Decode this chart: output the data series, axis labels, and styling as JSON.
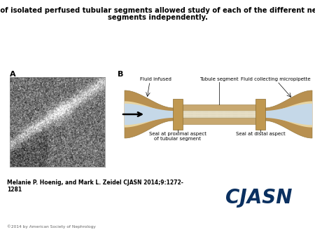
{
  "title_line1": "Study of isolated perfused tubular segments allowed study of each of the different nephron",
  "title_line2": "segments independently.",
  "title_fontsize": 7.2,
  "title_fontweight": "bold",
  "label_A": "A",
  "label_B": "B",
  "label_fontsize": 8,
  "label_fontweight": "bold",
  "text_fluid_infused": "Fluid infused",
  "text_tubule_segment": "Tubule segment",
  "text_fluid_collecting": "Fluid collecting micropipette",
  "text_seal_proximal": "Seal at proximal aspect\nof tubular segment",
  "text_seal_distal": "Seal at distal aspect",
  "text_citation": "Melanie P. Hoenig, and Mark L. Zeidel CJASN 2014;9:1272-\n1281",
  "text_copyright": "©2014 by American Society of Nephrology",
  "text_journal": "CJASN",
  "bg_color": "#ffffff",
  "tan_color": "#c8a870",
  "tan_mid": "#d4b87a",
  "tan_light": "#e8d4a0",
  "tan_outer": "#b89050",
  "blue_light": "#c5d8e8",
  "blue_mid": "#d8e8f0",
  "annotation_fontsize": 5.0,
  "citation_fontsize": 5.5,
  "journal_fontsize": 20,
  "journal_color": "#0a3060"
}
